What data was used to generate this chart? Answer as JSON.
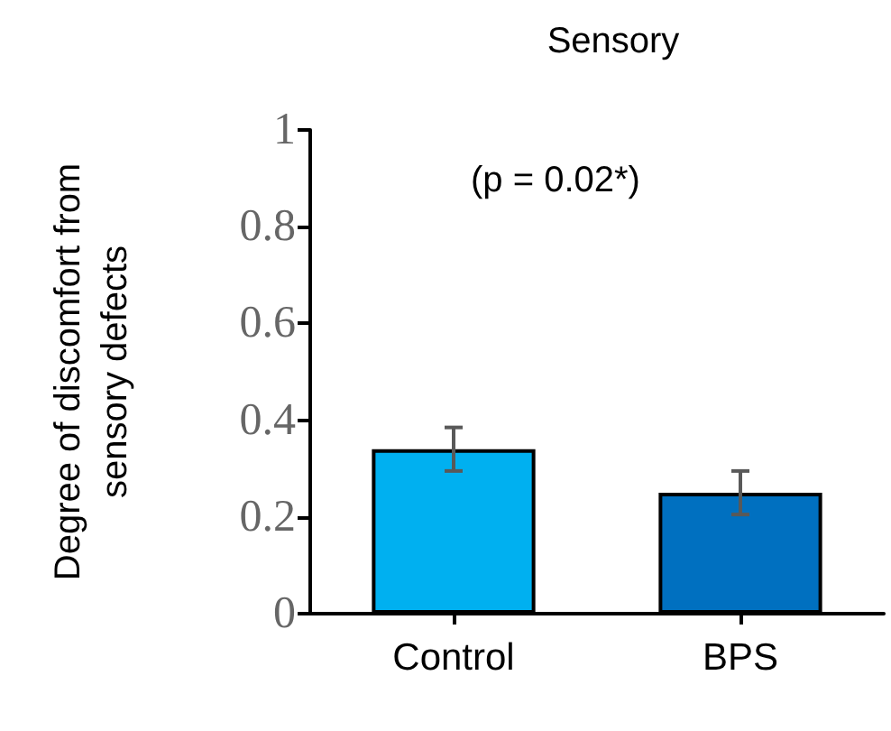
{
  "chart_data": {
    "type": "bar",
    "title": "Sensory",
    "ylabel": "Degree of discomfort from\nsensory defects",
    "categories": [
      "Control",
      "BPS"
    ],
    "values": [
      0.34,
      0.25
    ],
    "errors": [
      0.045,
      0.045
    ],
    "colors": [
      "#00b0f0",
      "#0070c0"
    ],
    "ylim": [
      0,
      1
    ],
    "yticks": [
      0,
      0.2,
      0.4,
      0.6,
      0.8,
      1
    ],
    "annotations": [
      "(p = 0.02*)"
    ],
    "grid": false
  }
}
